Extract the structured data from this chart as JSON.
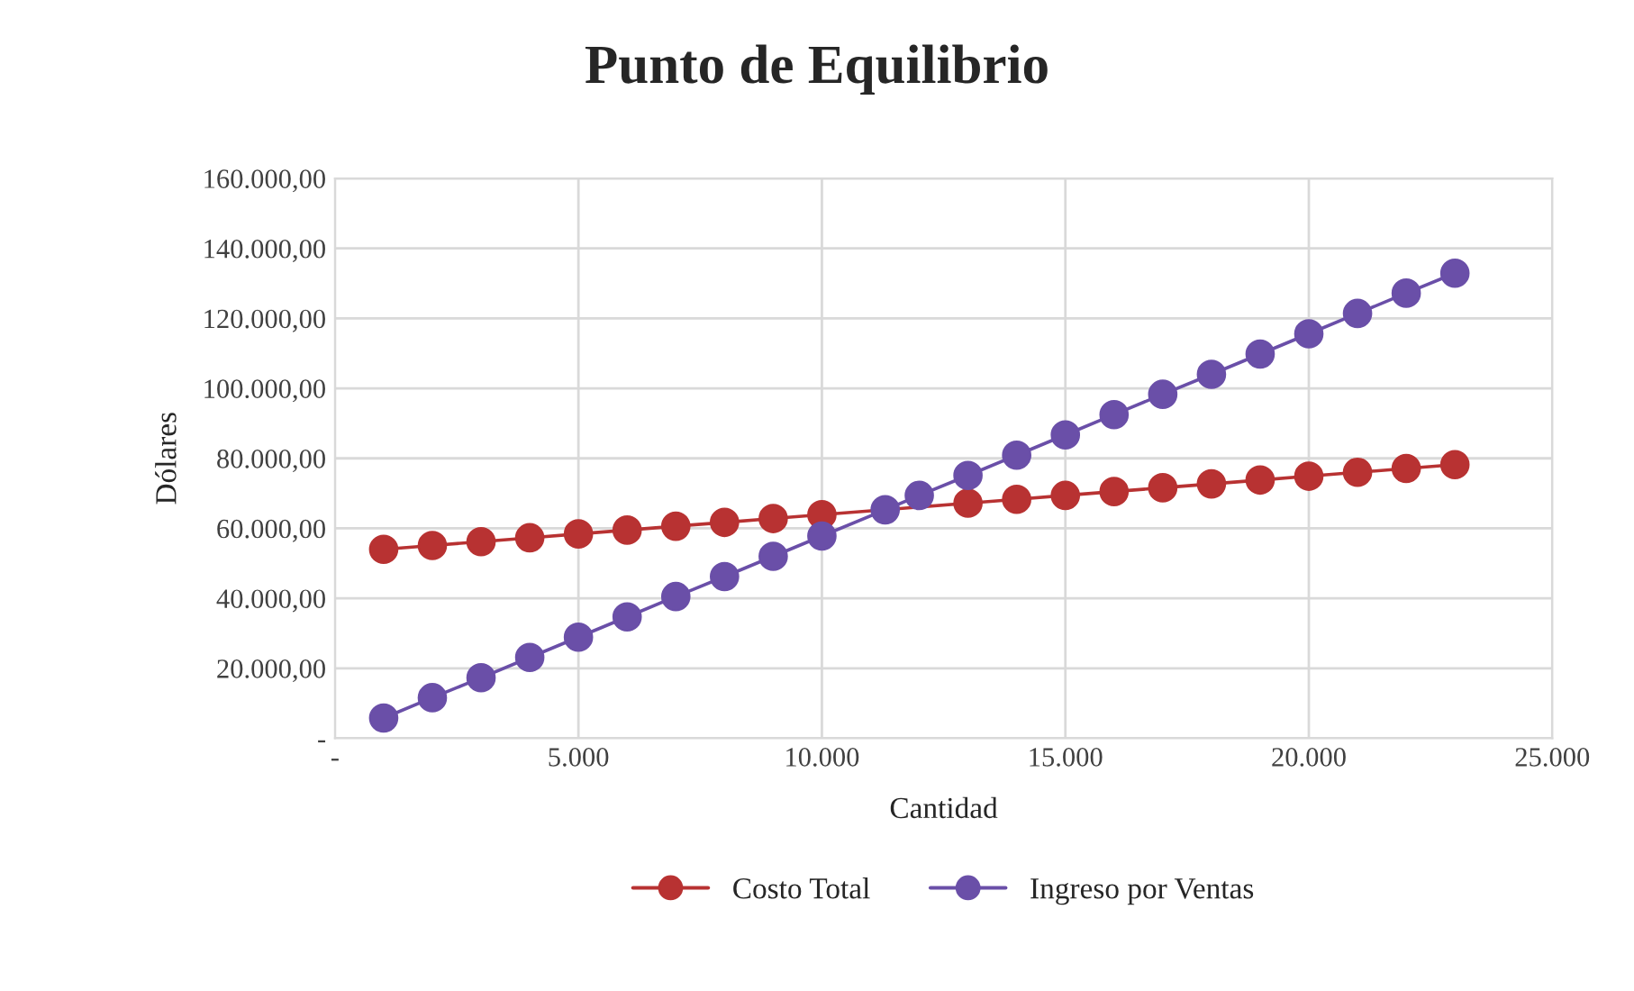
{
  "chart_data": {
    "type": "line",
    "title": "Punto de Equilibrio",
    "xlabel": "Cantidad",
    "ylabel": "Dólares",
    "x": [
      1000,
      2000,
      3000,
      4000,
      5000,
      6000,
      7000,
      8000,
      9000,
      10000,
      11300,
      12000,
      13000,
      14000,
      15000,
      16000,
      17000,
      18000,
      19000,
      20000,
      21000,
      22000,
      23000
    ],
    "series": [
      {
        "name": "Costo Total",
        "color": "#b83232",
        "values": [
          54000,
          55100,
          56200,
          57300,
          58400,
          59500,
          60600,
          61700,
          62800,
          63900,
          null,
          null,
          67200,
          68300,
          69400,
          70500,
          71600,
          72700,
          73800,
          74900,
          76000,
          77100,
          78200
        ]
      },
      {
        "name": "Ingreso por Ventas",
        "color": "#6a4fa8",
        "values": [
          5800,
          11600,
          17300,
          23100,
          28900,
          34700,
          40500,
          46200,
          52000,
          57800,
          65300,
          69400,
          75100,
          80900,
          86700,
          92500,
          98300,
          104000,
          109800,
          115600,
          121400,
          127200,
          132900
        ]
      }
    ],
    "xlim": [
      0,
      25000
    ],
    "xticks": [
      {
        "value": 0,
        "label": "-"
      },
      {
        "value": 5000,
        "label": "5.000"
      },
      {
        "value": 10000,
        "label": "10.000"
      },
      {
        "value": 15000,
        "label": "15.000"
      },
      {
        "value": 20000,
        "label": "20.000"
      },
      {
        "value": 25000,
        "label": "25.000"
      }
    ],
    "ylim": [
      0,
      160000
    ],
    "yticks": [
      {
        "value": 0,
        "label": "-"
      },
      {
        "value": 20000,
        "label": "20.000,00"
      },
      {
        "value": 40000,
        "label": "40.000,00"
      },
      {
        "value": 60000,
        "label": "60.000,00"
      },
      {
        "value": 80000,
        "label": "80.000,00"
      },
      {
        "value": 100000,
        "label": "100.000,00"
      },
      {
        "value": 120000,
        "label": "120.000,00"
      },
      {
        "value": 140000,
        "label": "140.000,00"
      },
      {
        "value": 160000,
        "label": "160.000,00"
      }
    ],
    "grid": true,
    "legend": "bottom",
    "marker": "circle",
    "line_style": "solid"
  }
}
